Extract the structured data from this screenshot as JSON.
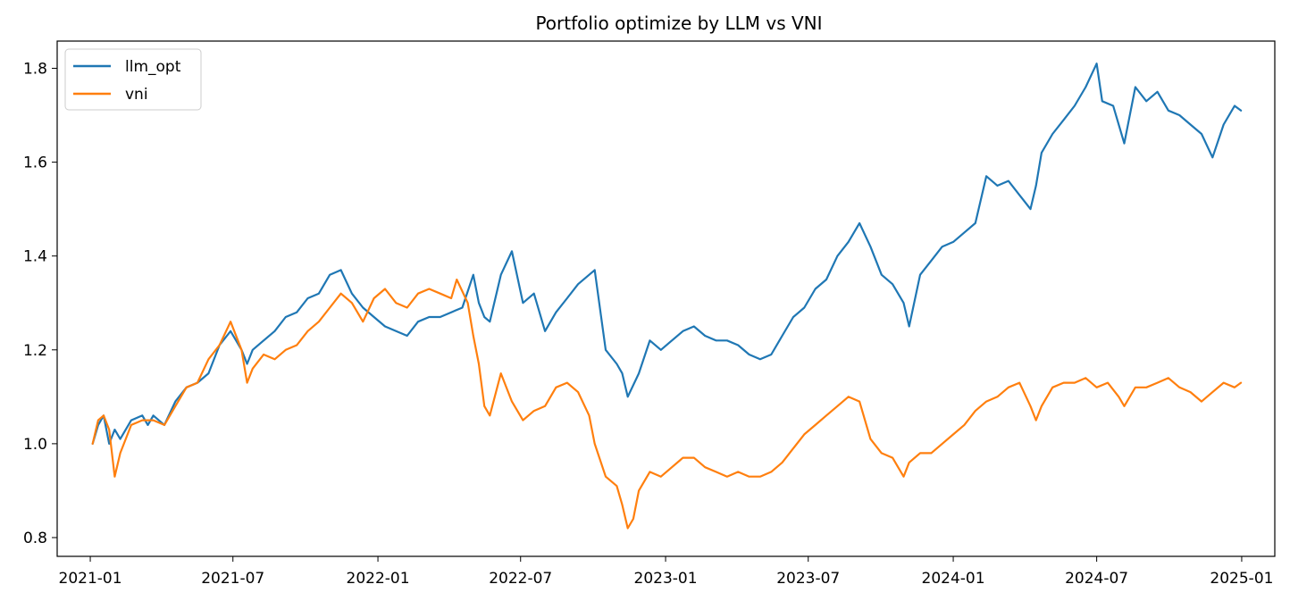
{
  "chart_data": {
    "type": "line",
    "title": "Portfolio optimize by LLM vs VNI",
    "xlabel": "",
    "ylabel": "",
    "x_axis": "date",
    "xlim": [
      "2020-11-20",
      "2025-02-12"
    ],
    "ylim": [
      0.76,
      1.858
    ],
    "x_ticks": [
      "2021-01",
      "2021-07",
      "2022-01",
      "2022-07",
      "2023-01",
      "2023-07",
      "2024-01",
      "2024-07",
      "2025-01"
    ],
    "y_ticks": [
      "0.8",
      "1.0",
      "1.2",
      "1.4",
      "1.6",
      "1.8"
    ],
    "grid": false,
    "legend": "upper left",
    "series": [
      {
        "name": "llm_opt",
        "color": "#1f77b4",
        "x": [
          "2021-01-04",
          "2021-01-11",
          "2021-01-18",
          "2021-01-25",
          "2021-02-01",
          "2021-02-08",
          "2021-02-22",
          "2021-03-08",
          "2021-03-15",
          "2021-03-22",
          "2021-04-05",
          "2021-04-19",
          "2021-05-03",
          "2021-05-17",
          "2021-05-31",
          "2021-06-14",
          "2021-06-28",
          "2021-07-12",
          "2021-07-19",
          "2021-07-26",
          "2021-08-09",
          "2021-08-23",
          "2021-09-06",
          "2021-09-20",
          "2021-10-04",
          "2021-10-18",
          "2021-11-01",
          "2021-11-15",
          "2021-11-29",
          "2021-12-13",
          "2021-12-27",
          "2022-01-10",
          "2022-01-24",
          "2022-02-07",
          "2022-02-21",
          "2022-03-07",
          "2022-03-21",
          "2022-04-04",
          "2022-04-18",
          "2022-05-02",
          "2022-05-09",
          "2022-05-16",
          "2022-05-23",
          "2022-06-06",
          "2022-06-20",
          "2022-07-04",
          "2022-07-18",
          "2022-08-01",
          "2022-08-15",
          "2022-08-29",
          "2022-09-12",
          "2022-09-26",
          "2022-10-03",
          "2022-10-17",
          "2022-10-31",
          "2022-11-07",
          "2022-11-14",
          "2022-11-28",
          "2022-12-12",
          "2022-12-26",
          "2023-01-09",
          "2023-01-23",
          "2023-02-06",
          "2023-02-20",
          "2023-03-06",
          "2023-03-20",
          "2023-04-03",
          "2023-04-17",
          "2023-05-01",
          "2023-05-15",
          "2023-05-29",
          "2023-06-12",
          "2023-06-26",
          "2023-07-10",
          "2023-07-24",
          "2023-08-07",
          "2023-08-21",
          "2023-09-04",
          "2023-09-18",
          "2023-10-02",
          "2023-10-16",
          "2023-10-30",
          "2023-11-06",
          "2023-11-20",
          "2023-12-04",
          "2023-12-18",
          "2024-01-01",
          "2024-01-15",
          "2024-01-29",
          "2024-02-12",
          "2024-02-26",
          "2024-03-11",
          "2024-03-25",
          "2024-04-08",
          "2024-04-15",
          "2024-04-22",
          "2024-05-06",
          "2024-05-20",
          "2024-06-03",
          "2024-06-17",
          "2024-07-01",
          "2024-07-08",
          "2024-07-22",
          "2024-08-05",
          "2024-08-19",
          "2024-09-02",
          "2024-09-16",
          "2024-09-30",
          "2024-10-14",
          "2024-10-28",
          "2024-11-11",
          "2024-11-25",
          "2024-12-09",
          "2024-12-23",
          "2024-12-31"
        ],
        "values": [
          1.0,
          1.04,
          1.06,
          1.0,
          1.03,
          1.01,
          1.05,
          1.06,
          1.04,
          1.06,
          1.04,
          1.09,
          1.12,
          1.13,
          1.15,
          1.21,
          1.24,
          1.2,
          1.17,
          1.2,
          1.22,
          1.24,
          1.27,
          1.28,
          1.31,
          1.32,
          1.36,
          1.37,
          1.32,
          1.29,
          1.27,
          1.25,
          1.24,
          1.23,
          1.26,
          1.27,
          1.27,
          1.28,
          1.29,
          1.36,
          1.3,
          1.27,
          1.26,
          1.36,
          1.41,
          1.3,
          1.32,
          1.24,
          1.28,
          1.31,
          1.34,
          1.36,
          1.37,
          1.2,
          1.17,
          1.15,
          1.1,
          1.15,
          1.22,
          1.2,
          1.22,
          1.24,
          1.25,
          1.23,
          1.22,
          1.22,
          1.21,
          1.19,
          1.18,
          1.19,
          1.23,
          1.27,
          1.29,
          1.33,
          1.35,
          1.4,
          1.43,
          1.47,
          1.42,
          1.36,
          1.34,
          1.3,
          1.25,
          1.36,
          1.39,
          1.42,
          1.43,
          1.45,
          1.47,
          1.57,
          1.55,
          1.56,
          1.53,
          1.5,
          1.55,
          1.62,
          1.66,
          1.69,
          1.72,
          1.76,
          1.81,
          1.73,
          1.72,
          1.64,
          1.76,
          1.73,
          1.75,
          1.71,
          1.7,
          1.68,
          1.66,
          1.61,
          1.68,
          1.72,
          1.71
        ]
      },
      {
        "name": "vni",
        "color": "#ff7f0e",
        "x": [
          "2021-01-04",
          "2021-01-11",
          "2021-01-18",
          "2021-01-25",
          "2021-02-01",
          "2021-02-08",
          "2021-02-22",
          "2021-03-08",
          "2021-03-22",
          "2021-04-05",
          "2021-04-19",
          "2021-05-03",
          "2021-05-17",
          "2021-05-31",
          "2021-06-14",
          "2021-06-28",
          "2021-07-12",
          "2021-07-19",
          "2021-07-26",
          "2021-08-09",
          "2021-08-23",
          "2021-09-06",
          "2021-09-20",
          "2021-10-04",
          "2021-10-18",
          "2021-11-01",
          "2021-11-15",
          "2021-11-29",
          "2021-12-13",
          "2021-12-27",
          "2022-01-10",
          "2022-01-24",
          "2022-02-07",
          "2022-02-21",
          "2022-03-07",
          "2022-03-21",
          "2022-04-04",
          "2022-04-11",
          "2022-04-25",
          "2022-05-02",
          "2022-05-09",
          "2022-05-16",
          "2022-05-23",
          "2022-06-06",
          "2022-06-20",
          "2022-07-04",
          "2022-07-18",
          "2022-08-01",
          "2022-08-15",
          "2022-08-29",
          "2022-09-12",
          "2022-09-26",
          "2022-10-03",
          "2022-10-17",
          "2022-10-31",
          "2022-11-07",
          "2022-11-14",
          "2022-11-21",
          "2022-11-28",
          "2022-12-12",
          "2022-12-26",
          "2023-01-09",
          "2023-01-23",
          "2023-02-06",
          "2023-02-20",
          "2023-03-06",
          "2023-03-20",
          "2023-04-03",
          "2023-04-17",
          "2023-05-01",
          "2023-05-15",
          "2023-05-29",
          "2023-06-12",
          "2023-06-26",
          "2023-07-10",
          "2023-07-24",
          "2023-08-07",
          "2023-08-21",
          "2023-09-04",
          "2023-09-18",
          "2023-10-02",
          "2023-10-16",
          "2023-10-30",
          "2023-11-06",
          "2023-11-20",
          "2023-12-04",
          "2023-12-18",
          "2024-01-01",
          "2024-01-15",
          "2024-01-29",
          "2024-02-12",
          "2024-02-26",
          "2024-03-11",
          "2024-03-25",
          "2024-04-08",
          "2024-04-15",
          "2024-04-22",
          "2024-05-06",
          "2024-05-20",
          "2024-06-03",
          "2024-06-17",
          "2024-07-01",
          "2024-07-15",
          "2024-07-29",
          "2024-08-05",
          "2024-08-19",
          "2024-09-02",
          "2024-09-16",
          "2024-09-30",
          "2024-10-14",
          "2024-10-28",
          "2024-11-11",
          "2024-11-25",
          "2024-12-09",
          "2024-12-23",
          "2024-12-31"
        ],
        "values": [
          1.0,
          1.05,
          1.06,
          1.03,
          0.93,
          0.98,
          1.04,
          1.05,
          1.05,
          1.04,
          1.08,
          1.12,
          1.13,
          1.18,
          1.21,
          1.26,
          1.2,
          1.13,
          1.16,
          1.19,
          1.18,
          1.2,
          1.21,
          1.24,
          1.26,
          1.29,
          1.32,
          1.3,
          1.26,
          1.31,
          1.33,
          1.3,
          1.29,
          1.32,
          1.33,
          1.32,
          1.31,
          1.35,
          1.3,
          1.23,
          1.17,
          1.08,
          1.06,
          1.15,
          1.09,
          1.05,
          1.07,
          1.08,
          1.12,
          1.13,
          1.11,
          1.06,
          1.0,
          0.93,
          0.91,
          0.87,
          0.82,
          0.84,
          0.9,
          0.94,
          0.93,
          0.95,
          0.97,
          0.97,
          0.95,
          0.94,
          0.93,
          0.94,
          0.93,
          0.93,
          0.94,
          0.96,
          0.99,
          1.02,
          1.04,
          1.06,
          1.08,
          1.1,
          1.09,
          1.01,
          0.98,
          0.97,
          0.93,
          0.96,
          0.98,
          0.98,
          1.0,
          1.02,
          1.04,
          1.07,
          1.09,
          1.1,
          1.12,
          1.13,
          1.08,
          1.05,
          1.08,
          1.12,
          1.13,
          1.13,
          1.14,
          1.12,
          1.13,
          1.1,
          1.08,
          1.12,
          1.12,
          1.13,
          1.14,
          1.12,
          1.11,
          1.09,
          1.11,
          1.13,
          1.12,
          1.13
        ]
      }
    ]
  }
}
